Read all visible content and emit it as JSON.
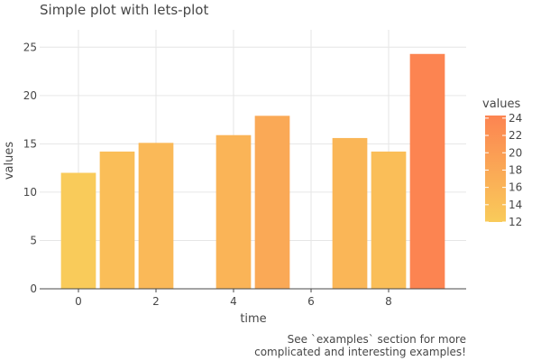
{
  "chart_data": {
    "type": "bar",
    "title": "Simple plot with lets-plot",
    "xlabel": "time",
    "ylabel": "values",
    "x": [
      0,
      1,
      2,
      4,
      5,
      7,
      8,
      9
    ],
    "values": [
      12.0,
      14.2,
      15.1,
      15.9,
      17.9,
      15.6,
      14.2,
      24.3
    ],
    "xlim": [
      -1,
      10
    ],
    "ylim": [
      0,
      26.8
    ],
    "x_ticks": [
      0,
      2,
      4,
      6,
      8
    ],
    "y_ticks": [
      0,
      5,
      10,
      15,
      20,
      25
    ],
    "grid": true,
    "legend": {
      "title": "values",
      "position": "right",
      "labels": [
        12,
        14,
        16,
        18,
        20,
        22,
        24
      ],
      "color_low": "#f9cb5a",
      "color_high": "#fc8451",
      "value_low": 12.0,
      "value_high": 24.3
    },
    "caption_lines": [
      "See `examples` section for more",
      "complicated and interesting examples!"
    ]
  }
}
